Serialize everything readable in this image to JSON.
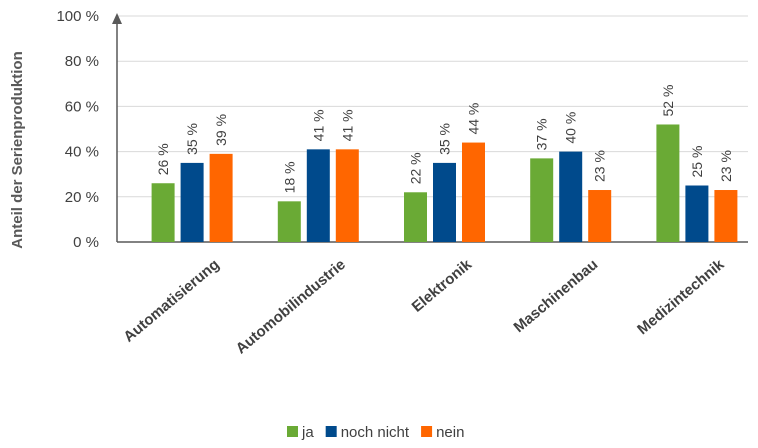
{
  "chart_data": {
    "type": "bar",
    "categories": [
      "Automatisierung",
      "Automobilindustrie",
      "Elektronik",
      "Maschinenbau",
      "Medizintechnik"
    ],
    "series": [
      {
        "name": "ja",
        "color": "#6aaa35",
        "values": [
          26,
          18,
          22,
          37,
          52
        ],
        "labels": [
          "26 %",
          "18 %",
          "22 %",
          "37 %",
          "52 %"
        ]
      },
      {
        "name": "noch nicht",
        "color": "#004a8c",
        "values": [
          35,
          41,
          35,
          40,
          25
        ],
        "labels": [
          "35 %",
          "41 %",
          "35 %",
          "40 %",
          "25 %"
        ]
      },
      {
        "name": "nein",
        "color": "#ff6600",
        "values": [
          39,
          41,
          44,
          23,
          23
        ],
        "labels": [
          "39 %",
          "41 %",
          "44 %",
          "23 %",
          "23 %"
        ]
      }
    ],
    "yticks": [
      0,
      20,
      40,
      60,
      80,
      100
    ],
    "ytick_labels": [
      "0 %",
      "20 %",
      "40 %",
      "60 %",
      "80 %",
      "100 %"
    ],
    "ylim": [
      0,
      100
    ],
    "xlabel": "",
    "ylabel": "Anteil der Serienproduktion",
    "grid": true,
    "legend_position": "bottom"
  }
}
